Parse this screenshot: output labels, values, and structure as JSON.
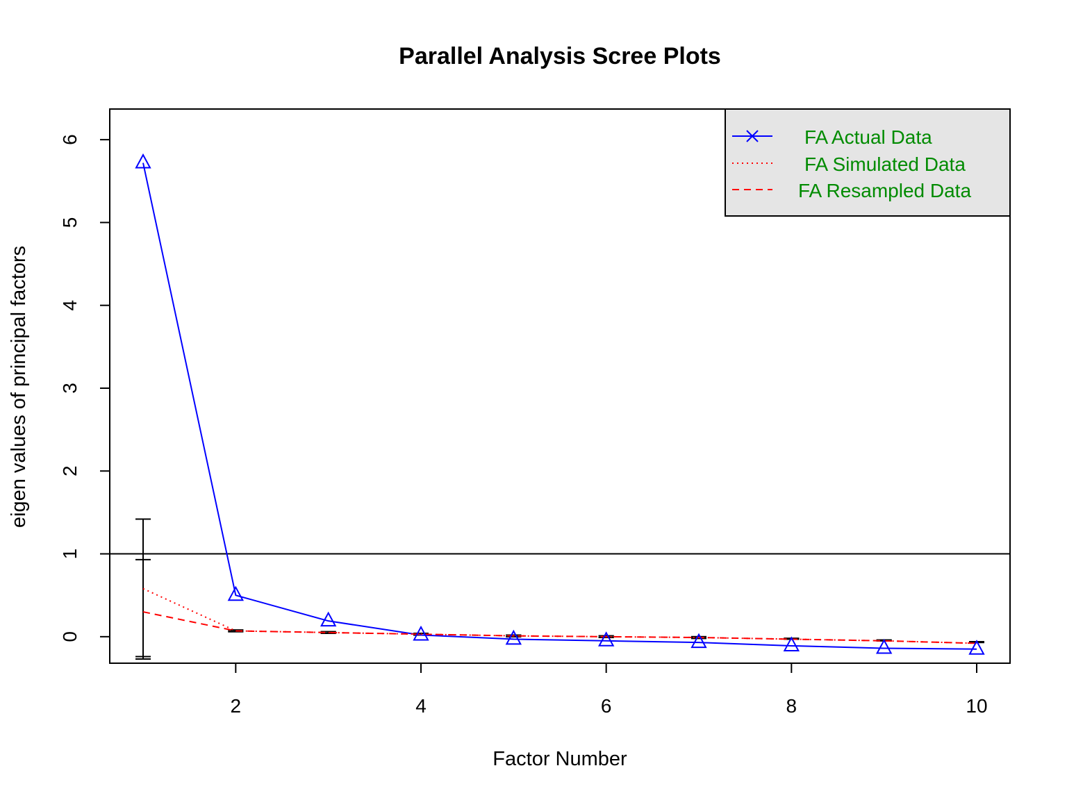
{
  "chart_data": {
    "type": "line",
    "title": "Parallel Analysis Scree Plots",
    "xlabel": "Factor Number",
    "ylabel": "eigen values of principal factors",
    "xlim": [
      0.64,
      10.36
    ],
    "ylim": [
      -0.32,
      6.37
    ],
    "x_ticks": [
      2,
      4,
      6,
      8,
      10
    ],
    "y_ticks": [
      0,
      1,
      2,
      3,
      4,
      5,
      6
    ],
    "x": [
      1,
      2,
      3,
      4,
      5,
      6,
      7,
      8,
      9,
      10
    ],
    "reference_line": 1,
    "legend_position": "top-right",
    "series": [
      {
        "name": "FA  Actual Data",
        "style": "solid",
        "marker": "triangle",
        "color": "#0000ff",
        "values": [
          5.72,
          0.5,
          0.19,
          0.02,
          -0.03,
          -0.05,
          -0.07,
          -0.11,
          -0.14,
          -0.15
        ]
      },
      {
        "name": "FA  Simulated Data",
        "style": "dotted",
        "color": "#ff0000",
        "values": [
          0.58,
          0.07,
          0.05,
          0.03,
          0.01,
          0.0,
          -0.01,
          -0.03,
          -0.05,
          -0.08
        ]
      },
      {
        "name": "FA  Resampled Data",
        "style": "dashed",
        "color": "#ff0000",
        "values": [
          0.3,
          0.07,
          0.05,
          0.03,
          0.01,
          0.0,
          -0.01,
          -0.03,
          -0.05,
          -0.08
        ]
      }
    ],
    "error_bars": {
      "x": [
        1,
        2,
        3,
        4,
        5,
        6,
        7,
        8,
        9,
        10
      ],
      "simulated": {
        "low": [
          -0.24,
          0.06,
          0.04,
          0.02,
          0.0,
          -0.01,
          -0.02,
          -0.03,
          -0.05,
          -0.07
        ],
        "high": [
          1.42,
          0.08,
          0.06,
          0.04,
          0.02,
          0.01,
          0.0,
          -0.02,
          -0.04,
          -0.06
        ]
      },
      "resampled": {
        "low": [
          -0.27,
          0.06,
          0.04,
          0.02,
          0.0,
          -0.01,
          -0.02,
          -0.03,
          -0.05,
          -0.07
        ],
        "high": [
          0.93,
          0.08,
          0.06,
          0.04,
          0.02,
          0.01,
          0.0,
          -0.02,
          -0.04,
          -0.06
        ]
      }
    }
  }
}
